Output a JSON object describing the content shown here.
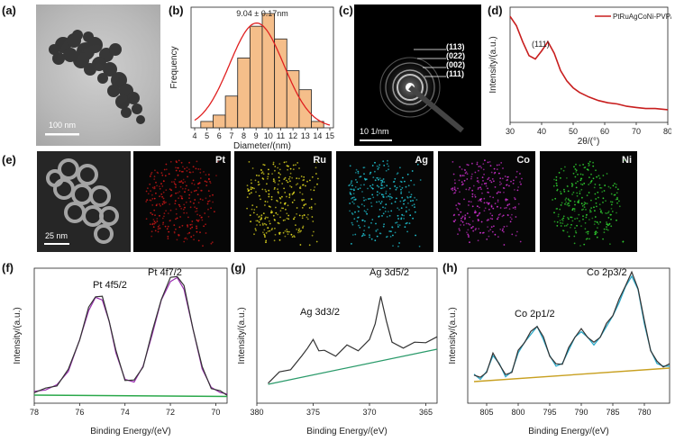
{
  "panel_labels": {
    "a": "(a)",
    "b": "(b)",
    "c": "(c)",
    "d": "(d)",
    "e": "(e)",
    "f": "(f)",
    "g": "(g)",
    "h": "(h)"
  },
  "panel_a": {
    "scale_bar": "100 nm"
  },
  "panel_c": {
    "scale_bar": "10 1/nm",
    "rings": [
      "(113)",
      "(022)",
      "(002)",
      "(111)"
    ]
  },
  "panel_e": {
    "scale_bar": "25 nm",
    "maps": [
      {
        "label": "Pt",
        "color": "#d01818"
      },
      {
        "label": "Ru",
        "color": "#e8e020"
      },
      {
        "label": "Ag",
        "color": "#20c8d8"
      },
      {
        "label": "Co",
        "color": "#d030d0"
      },
      {
        "label": "Ni",
        "color": "#30d030"
      }
    ]
  },
  "chart_data": [
    {
      "id": "b",
      "type": "bar",
      "annotation": "9.04 ± 0.17nm",
      "xlabel": "Diameter/(nm)",
      "ylabel": "Frequency",
      "x_ticks": [
        4,
        5,
        6,
        7,
        8,
        9,
        10,
        11,
        12,
        13,
        14,
        15
      ],
      "categories": [
        5,
        6,
        7,
        8,
        9,
        10,
        11,
        12,
        13,
        14
      ],
      "values": [
        1,
        2,
        5,
        11,
        16,
        18,
        14,
        9,
        6,
        1
      ],
      "fit_curve": {
        "mean": 9.04,
        "peak": 16.5
      },
      "xlim": [
        4,
        15
      ],
      "ylim": [
        0,
        19
      ]
    },
    {
      "id": "d",
      "type": "line",
      "legend": "PtRuAgCoNi-PVP/C",
      "peak_label": "(111)",
      "xlabel": "2θ/(°)",
      "ylabel": "Intensity/(a.u.)",
      "x_ticks": [
        30,
        40,
        50,
        60,
        70,
        80
      ],
      "xlim": [
        30,
        80
      ],
      "ylim": [
        0,
        1
      ],
      "x": [
        30,
        32,
        34,
        36,
        38,
        40,
        42,
        44,
        46,
        48,
        50,
        52,
        55,
        58,
        61,
        64,
        67,
        70,
        73,
        76,
        80
      ],
      "y": [
        0.92,
        0.84,
        0.7,
        0.58,
        0.55,
        0.62,
        0.7,
        0.6,
        0.45,
        0.36,
        0.3,
        0.26,
        0.22,
        0.19,
        0.17,
        0.16,
        0.14,
        0.13,
        0.12,
        0.12,
        0.11
      ]
    },
    {
      "id": "f",
      "type": "line",
      "xlabel": "Binding Energy/(eV)",
      "ylabel": "Intensity/(a.u.)",
      "peaks": [
        "Pt 4f5/2",
        "Pt 4f7/2"
      ],
      "x_ticks": [
        78,
        76,
        74,
        72,
        70
      ],
      "xlim": [
        78,
        69.5
      ],
      "ylim": [
        0,
        1
      ],
      "x": [
        78,
        77.5,
        77,
        76.5,
        76,
        75.6,
        75.3,
        75.0,
        74.7,
        74.4,
        74.0,
        73.6,
        73.2,
        72.8,
        72.4,
        72.0,
        71.7,
        71.4,
        71.0,
        70.6,
        70.2,
        69.8,
        69.5
      ],
      "y": [
        0.09,
        0.1,
        0.14,
        0.24,
        0.48,
        0.7,
        0.8,
        0.78,
        0.62,
        0.38,
        0.18,
        0.16,
        0.28,
        0.52,
        0.78,
        0.92,
        0.95,
        0.86,
        0.56,
        0.26,
        0.12,
        0.08,
        0.07
      ],
      "background": [
        [
          78,
          0.06
        ],
        [
          69.5,
          0.05
        ]
      ]
    },
    {
      "id": "g",
      "type": "line",
      "xlabel": "Binding Energy/(eV)",
      "ylabel": "Intensity/(a.u.)",
      "peaks": [
        "Ag 3d3/2",
        "Ag 3d5/2"
      ],
      "x_ticks": [
        380,
        375,
        370,
        365
      ],
      "xlim": [
        380,
        364
      ],
      "ylim": [
        0,
        1
      ],
      "x": [
        379,
        378,
        377,
        376,
        375.5,
        375,
        374.5,
        374,
        373,
        372,
        371,
        370,
        369.5,
        369,
        368.5,
        368,
        367,
        366,
        365,
        364
      ],
      "y": [
        0.16,
        0.22,
        0.26,
        0.34,
        0.42,
        0.46,
        0.4,
        0.38,
        0.36,
        0.42,
        0.4,
        0.46,
        0.6,
        0.78,
        0.62,
        0.44,
        0.42,
        0.44,
        0.46,
        0.48
      ],
      "background": [
        [
          379,
          0.14
        ],
        [
          364,
          0.4
        ]
      ]
    },
    {
      "id": "h",
      "type": "line",
      "xlabel": "Binding Energy/(eV)",
      "ylabel": "Intensity/(a.u.)",
      "peaks": [
        "Co 2p1/2",
        "Co 2p3/2"
      ],
      "x_ticks": [
        805,
        800,
        795,
        790,
        785,
        780
      ],
      "xlim": [
        808,
        776
      ],
      "ylim": [
        0,
        1
      ],
      "x": [
        807,
        806,
        805,
        804,
        803,
        802,
        801,
        800,
        799,
        798,
        797,
        796,
        795,
        794,
        793,
        792,
        791,
        790,
        789,
        788,
        787,
        786,
        785,
        784,
        783,
        782,
        781,
        780,
        779,
        778,
        777,
        776
      ],
      "y": [
        0.22,
        0.18,
        0.24,
        0.36,
        0.3,
        0.2,
        0.24,
        0.38,
        0.46,
        0.52,
        0.58,
        0.48,
        0.36,
        0.28,
        0.3,
        0.4,
        0.5,
        0.54,
        0.5,
        0.44,
        0.5,
        0.58,
        0.66,
        0.76,
        0.88,
        0.96,
        0.86,
        0.6,
        0.4,
        0.3,
        0.28,
        0.28
      ],
      "background": [
        [
          807,
          0.16
        ],
        [
          776,
          0.26
        ]
      ]
    }
  ]
}
